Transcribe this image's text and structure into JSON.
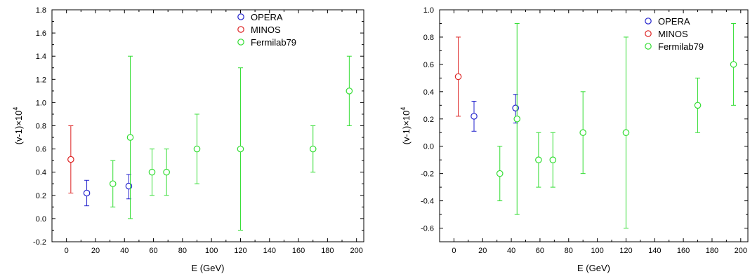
{
  "chart_data": [
    {
      "type": "scatter",
      "xlabel": "E (GeV)",
      "ylabel_base": "(v-1)×10",
      "ylabel_exp": "4",
      "xlim": [
        -10,
        205
      ],
      "ylim": [
        -0.2,
        1.8
      ],
      "xticks": [
        0,
        20,
        40,
        60,
        80,
        100,
        120,
        140,
        160,
        180,
        200
      ],
      "yticks": [
        -0.2,
        0.0,
        0.2,
        0.4,
        0.6,
        0.8,
        1.0,
        1.2,
        1.4,
        1.6,
        1.8
      ],
      "ytick_decimals": 1,
      "grid": false,
      "legend": "top-right",
      "series": [
        {
          "name": "OPERA",
          "color": "#2222cc",
          "points": [
            {
              "x": 14,
              "y": 0.22,
              "lo": 0.11,
              "hi": 0.33
            },
            {
              "x": 43,
              "y": 0.28,
              "lo": 0.17,
              "hi": 0.38
            }
          ]
        },
        {
          "name": "MINOS",
          "color": "#dd2222",
          "points": [
            {
              "x": 3,
              "y": 0.51,
              "lo": 0.22,
              "hi": 0.8
            }
          ]
        },
        {
          "name": "Fermilab79",
          "color": "#33dd33",
          "points": [
            {
              "x": 32,
              "y": 0.3,
              "lo": 0.1,
              "hi": 0.5
            },
            {
              "x": 44,
              "y": 0.7,
              "lo": 0.0,
              "hi": 1.4
            },
            {
              "x": 59,
              "y": 0.4,
              "lo": 0.2,
              "hi": 0.6
            },
            {
              "x": 69,
              "y": 0.4,
              "lo": 0.2,
              "hi": 0.6
            },
            {
              "x": 90,
              "y": 0.6,
              "lo": 0.3,
              "hi": 0.9
            },
            {
              "x": 120,
              "y": 0.6,
              "lo": -0.1,
              "hi": 1.3
            },
            {
              "x": 170,
              "y": 0.6,
              "lo": 0.4,
              "hi": 0.8
            },
            {
              "x": 195,
              "y": 1.1,
              "lo": 0.8,
              "hi": 1.4
            }
          ]
        }
      ]
    },
    {
      "type": "scatter",
      "xlabel": "E (GeV)",
      "ylabel_base": "(v-1)×10",
      "ylabel_exp": "4",
      "xlim": [
        -10,
        205
      ],
      "ylim": [
        -0.7,
        1.0
      ],
      "xticks": [
        0,
        20,
        40,
        60,
        80,
        100,
        120,
        140,
        160,
        180,
        200
      ],
      "yticks": [
        -0.6,
        -0.4,
        -0.2,
        0.0,
        0.2,
        0.4,
        0.6,
        0.8,
        1.0
      ],
      "ytick_decimals": 1,
      "grid": false,
      "legend": "top-right",
      "series": [
        {
          "name": "OPERA",
          "color": "#2222cc",
          "points": [
            {
              "x": 14,
              "y": 0.22,
              "lo": 0.11,
              "hi": 0.33
            },
            {
              "x": 43,
              "y": 0.28,
              "lo": 0.17,
              "hi": 0.38
            }
          ]
        },
        {
          "name": "MINOS",
          "color": "#dd2222",
          "points": [
            {
              "x": 3,
              "y": 0.51,
              "lo": 0.22,
              "hi": 0.8
            }
          ]
        },
        {
          "name": "Fermilab79",
          "color": "#33dd33",
          "points": [
            {
              "x": 32,
              "y": -0.2,
              "lo": -0.4,
              "hi": 0.0
            },
            {
              "x": 44,
              "y": 0.2,
              "lo": -0.5,
              "hi": 0.9
            },
            {
              "x": 59,
              "y": -0.1,
              "lo": -0.3,
              "hi": 0.1
            },
            {
              "x": 69,
              "y": -0.1,
              "lo": -0.3,
              "hi": 0.1
            },
            {
              "x": 90,
              "y": 0.1,
              "lo": -0.2,
              "hi": 0.4
            },
            {
              "x": 120,
              "y": 0.1,
              "lo": -0.6,
              "hi": 0.8
            },
            {
              "x": 170,
              "y": 0.3,
              "lo": 0.1,
              "hi": 0.5
            },
            {
              "x": 195,
              "y": 0.6,
              "lo": 0.3,
              "hi": 0.9
            }
          ]
        }
      ]
    }
  ]
}
